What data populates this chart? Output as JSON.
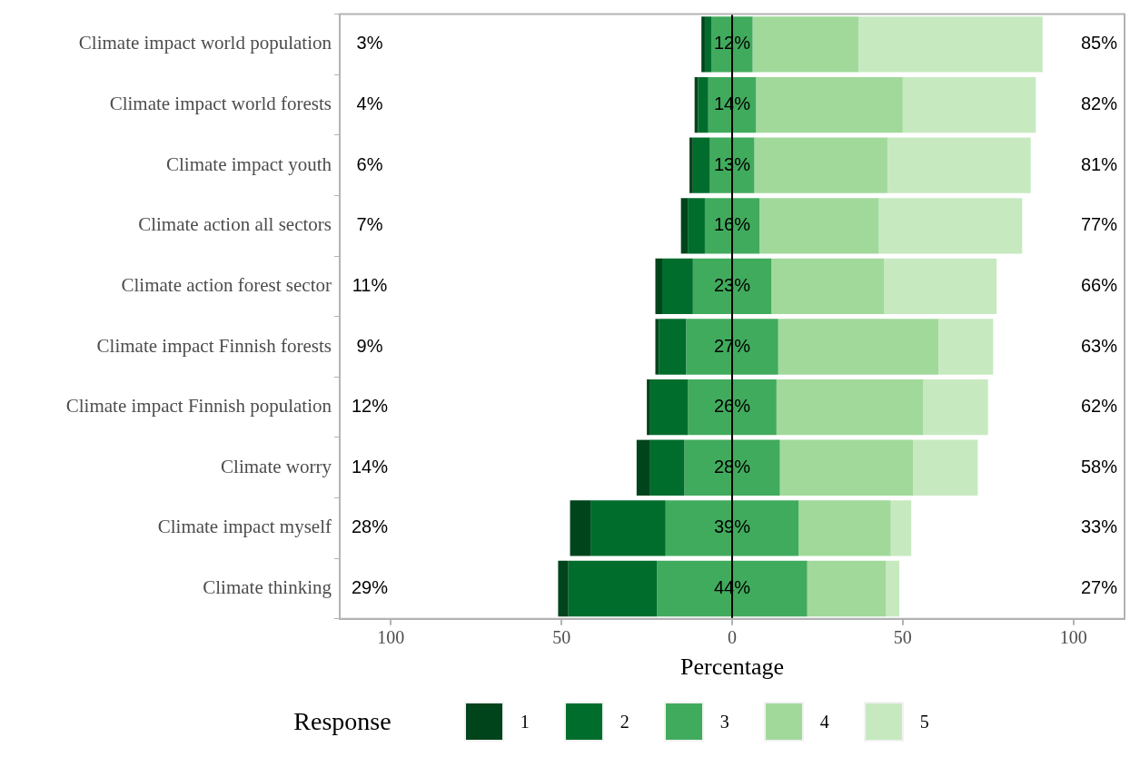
{
  "chart_data": {
    "type": "bar",
    "orientation": "horizontal",
    "xlabel": "Percentage",
    "legend_title": "Response",
    "legend": "bottom",
    "grid": false,
    "categories": [
      "Climate impact world population",
      "Climate impact world forests",
      "Climate impact youth",
      "Climate action all sectors",
      "Climate action forest sector",
      "Climate impact Finnish forests",
      "Climate impact Finnish population",
      "Climate worry",
      "Climate impact myself",
      "Climate thinking"
    ],
    "xlim": [
      -115,
      115
    ],
    "xticks": [
      {
        "value": -100,
        "label": "100"
      },
      {
        "value": -50,
        "label": "50"
      },
      0,
      50,
      100
    ],
    "series": [
      {
        "name": "1",
        "color": "#00441b",
        "values": [
          1,
          1,
          1,
          2,
          2,
          1,
          1,
          4,
          6,
          3
        ],
        "base": [
          -9,
          -11,
          -12.5,
          -15,
          -22.5,
          -22.5,
          -25,
          -28,
          -47.5,
          -51
        ]
      },
      {
        "name": "2",
        "color": "#006d2c",
        "values": [
          2,
          3,
          5,
          5,
          9,
          8,
          11,
          10,
          22,
          26
        ],
        "base": [
          -8,
          -10,
          -11.5,
          -13,
          -20.5,
          -21.5,
          -24,
          -24,
          -41.5,
          -48
        ]
      },
      {
        "name": "3",
        "color": "#41ab5d",
        "values": [
          12,
          14,
          13,
          16,
          23,
          27,
          26,
          28,
          39,
          44
        ],
        "base": [
          -6,
          -7,
          -6.5,
          -8,
          -11.5,
          -13.5,
          -13,
          -14,
          -19.5,
          -22
        ],
        "value_labels": [
          "12%",
          "14%",
          "13%",
          "16%",
          "23%",
          "27%",
          "26%",
          "28%",
          "39%",
          "44%"
        ]
      },
      {
        "name": "4",
        "color": "#a1d99b",
        "values": [
          31,
          43,
          39,
          35,
          33,
          47,
          43,
          39,
          27,
          23
        ],
        "base": [
          6,
          7,
          6.5,
          8,
          11.5,
          13.5,
          13,
          14,
          19.5,
          22
        ]
      },
      {
        "name": "5",
        "color": "#c7e9c0",
        "values": [
          54,
          39,
          42,
          42,
          33,
          16,
          19,
          19,
          6,
          4
        ],
        "base": [
          37,
          50,
          45.5,
          43,
          44.5,
          60.5,
          56,
          53,
          46.5,
          45
        ]
      }
    ],
    "ref_lines": [
      {
        "axis": "x",
        "value": 0,
        "color": "#000000"
      }
    ],
    "annotations": [
      "3%",
      "4%",
      "6%",
      "7%",
      "11%",
      "9%",
      "12%",
      "14%",
      "28%",
      "29%",
      "85%",
      "82%",
      "81%",
      "77%",
      "66%",
      "63%",
      "62%",
      "58%",
      "33%",
      "27%"
    ]
  }
}
